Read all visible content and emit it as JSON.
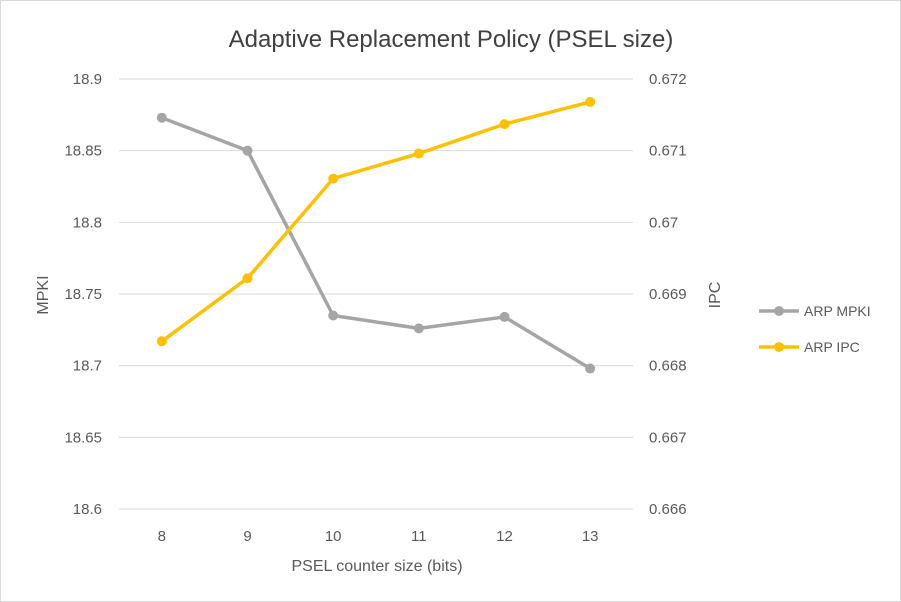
{
  "chart_data": {
    "type": "line",
    "title": "Adaptive Replacement Policy (PSEL size)",
    "xlabel": "PSEL counter size (bits)",
    "ylabel": "MPKI",
    "y2label": "IPC",
    "categories": [
      "8",
      "9",
      "10",
      "11",
      "12",
      "13"
    ],
    "ylim": [
      18.6,
      18.9
    ],
    "y2lim": [
      0.666,
      0.672
    ],
    "yticks": [
      "18.6",
      "18.65",
      "18.7",
      "18.75",
      "18.8",
      "18.85",
      "18.9"
    ],
    "y2ticks": [
      "0.666",
      "0.667",
      "0.668",
      "0.669",
      "0.67",
      "0.671",
      "0.672"
    ],
    "grid": true,
    "legend_position": "right",
    "series": [
      {
        "name": "ARP MPKI",
        "axis": "left",
        "color": "#a5a5a5",
        "values": [
          18.873,
          18.85,
          18.735,
          18.726,
          18.734,
          18.698
        ]
      },
      {
        "name": "ARP IPC",
        "axis": "right",
        "color": "#ffc000",
        "values": [
          0.66834,
          0.66922,
          0.67061,
          0.67096,
          0.67137,
          0.67168
        ]
      }
    ]
  }
}
